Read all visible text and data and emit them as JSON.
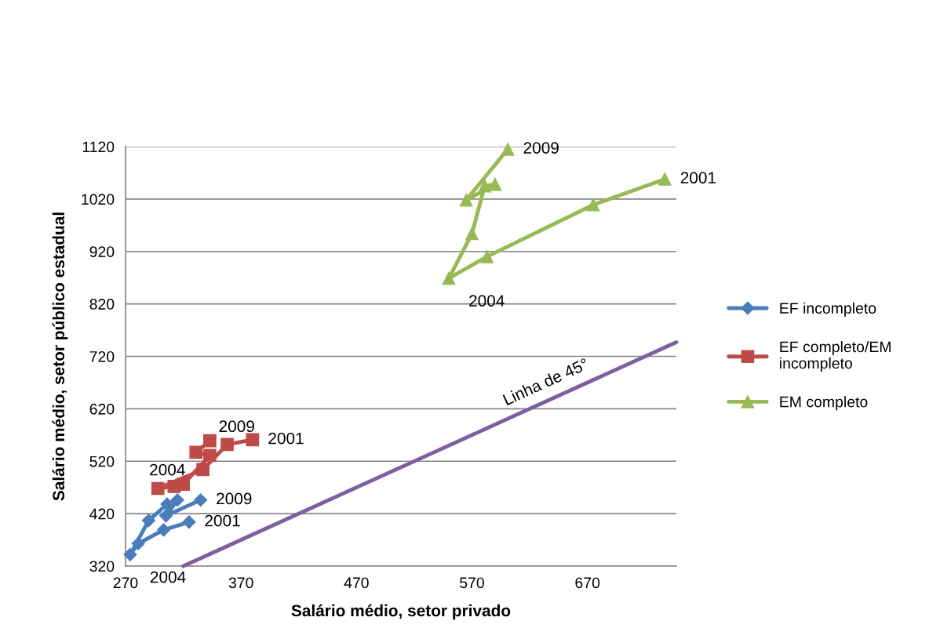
{
  "chart_data": {
    "type": "line",
    "xlabel": "Salário médio, setor privado",
    "ylabel": "Salário médio, setor público estadual",
    "xlim": [
      270,
      747
    ],
    "xticks": [
      270,
      370,
      470,
      570,
      670
    ],
    "ylim": [
      320,
      1120
    ],
    "yticks": [
      320,
      420,
      520,
      620,
      720,
      820,
      920,
      1020,
      1120
    ],
    "grid": "y",
    "legend": "right",
    "marker": "none",
    "series": [
      {
        "name": "EF incompleto",
        "color": "#4a7ebb",
        "marker": "diamond",
        "x": [
          325,
          303,
          281,
          274,
          290,
          306,
          315,
          305,
          335
        ],
        "values": [
          404,
          389,
          363,
          342,
          407,
          438,
          446,
          416,
          446
        ]
      },
      {
        "name": "EF completo/EM incompleto",
        "color": "#be4b48",
        "marker": "square",
        "x": [
          380,
          358,
          337,
          298,
          312,
          320,
          343,
          331,
          343
        ],
        "values": [
          561,
          552,
          504,
          468,
          472,
          476,
          531,
          537,
          559
        ]
      },
      {
        "name": "EM completo",
        "color": "#98b954",
        "marker": "triangle",
        "x": [
          737,
          675,
          583,
          550,
          570,
          581,
          590,
          565,
          601
        ],
        "values": [
          1058,
          1009,
          910,
          869,
          954,
          1045,
          1048,
          1018,
          1115
        ]
      },
      {
        "color": "#7d60a0",
        "x": [
          320,
          747
        ],
        "values": [
          320,
          747
        ]
      }
    ],
    "annotations": [
      {
        "text": "2001",
        "x": 325,
        "y": 404
      },
      {
        "text": "2004",
        "x": 274,
        "y": 342
      },
      {
        "text": "2009",
        "x": 335,
        "y": 446
      },
      {
        "text": "2001",
        "x": 380,
        "y": 561
      },
      {
        "text": "2004",
        "x": 298,
        "y": 468
      },
      {
        "text": "2009",
        "x": 343,
        "y": 559
      },
      {
        "text": "2001",
        "x": 737,
        "y": 1058
      },
      {
        "text": "2004",
        "x": 550,
        "y": 869
      },
      {
        "text": "2009",
        "x": 601,
        "y": 1115
      },
      {
        "text": "Linha de 45°",
        "x": 640,
        "y": 640
      }
    ]
  }
}
